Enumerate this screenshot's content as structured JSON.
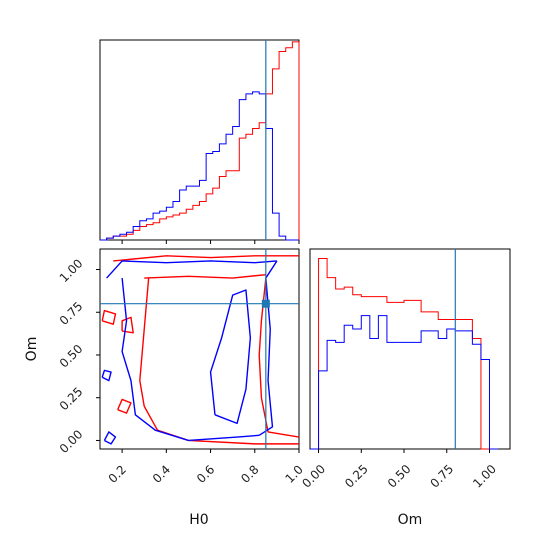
{
  "chart_data": {
    "type": "corner",
    "params": [
      "H0",
      "Om"
    ],
    "truths": {
      "H0": 0.85,
      "Om": 0.8
    },
    "colors": {
      "series_a": "#ff0000",
      "series_b": "#0000ff",
      "truth": "#1f77b4"
    },
    "axes": {
      "H0": {
        "label": "H0",
        "range": [
          0.1,
          1.0
        ],
        "ticks": [
          "0.2",
          "0.4",
          "0.6",
          "0.8",
          "1.0"
        ],
        "tick_values": [
          0.2,
          0.4,
          0.6,
          0.8,
          1.0
        ]
      },
      "Om": {
        "label": "Om",
        "range": [
          -0.05,
          1.12
        ],
        "ticks": [
          "0.00",
          "0.25",
          "0.50",
          "0.75",
          "1.00"
        ],
        "tick_values": [
          0.0,
          0.25,
          0.5,
          0.75,
          1.0
        ]
      },
      "Om_hist": {
        "range": [
          -0.05,
          1.12
        ],
        "ticks": [
          "0.00",
          "0.25",
          "0.50",
          "0.75",
          "1.00"
        ],
        "tick_values": [
          0.0,
          0.25,
          0.5,
          0.75,
          1.0
        ]
      }
    },
    "hist_H0": {
      "edges": [
        0.1,
        0.13,
        0.16,
        0.19,
        0.22,
        0.25,
        0.28,
        0.31,
        0.34,
        0.37,
        0.4,
        0.43,
        0.46,
        0.49,
        0.52,
        0.55,
        0.58,
        0.61,
        0.64,
        0.67,
        0.7,
        0.73,
        0.76,
        0.79,
        0.82,
        0.85,
        0.88,
        0.91,
        0.94,
        0.97,
        1.0
      ],
      "series": [
        {
          "color": "red",
          "values": [
            0,
            1,
            2,
            2,
            3,
            5,
            7,
            8,
            9,
            11,
            12,
            13,
            14,
            16,
            18,
            20,
            24,
            27,
            33,
            36,
            36,
            53,
            55,
            58,
            61,
            76,
            89,
            98,
            100,
            103
          ]
        },
        {
          "color": "blue",
          "values": [
            0,
            1,
            2,
            3,
            4,
            7,
            10,
            11,
            14,
            15,
            17,
            20,
            26,
            28,
            28,
            31,
            45,
            46,
            50,
            55,
            59,
            73,
            76,
            77,
            76,
            58,
            14,
            2,
            0,
            0
          ]
        }
      ],
      "ymax": 104
    },
    "hist_Om": {
      "edges": [
        -0.05,
        0.0,
        0.05,
        0.1,
        0.15,
        0.2,
        0.25,
        0.3,
        0.35,
        0.4,
        0.45,
        0.5,
        0.55,
        0.6,
        0.65,
        0.7,
        0.75,
        0.8,
        0.85,
        0.9,
        0.95,
        1.0,
        1.05
      ],
      "series": [
        {
          "color": "red",
          "values": [
            0,
            100,
            90,
            84,
            85,
            81,
            80,
            80,
            80,
            77,
            77,
            78,
            78,
            72,
            72,
            68,
            68,
            68,
            68,
            58,
            0,
            0
          ]
        },
        {
          "color": "blue",
          "values": [
            0,
            41,
            57,
            56,
            65,
            63,
            70,
            58,
            70,
            56,
            56,
            56,
            56,
            62,
            62,
            58,
            63,
            62,
            62,
            55,
            47,
            0
          ]
        }
      ],
      "ymax": 105
    },
    "contours": [
      {
        "color": "red",
        "points": [
          [
            0.16,
            1.05
          ],
          [
            0.4,
            1.08
          ],
          [
            0.6,
            1.07
          ],
          [
            0.8,
            1.08
          ],
          [
            1.0,
            1.08
          ]
        ]
      },
      {
        "color": "red",
        "points": [
          [
            0.3,
            0.95
          ],
          [
            0.5,
            0.96
          ],
          [
            0.7,
            0.95
          ],
          [
            0.85,
            0.97
          ]
        ]
      },
      {
        "color": "red",
        "points": [
          [
            0.32,
            0.95
          ],
          [
            0.3,
            0.65
          ],
          [
            0.28,
            0.35
          ],
          [
            0.3,
            0.2
          ],
          [
            0.36,
            0.06
          ],
          [
            0.5,
            0.0
          ],
          [
            0.8,
            -0.02
          ],
          [
            1.0,
            -0.02
          ]
        ]
      },
      {
        "color": "red",
        "points": [
          [
            0.85,
            0.95
          ],
          [
            0.83,
            0.7
          ],
          [
            0.82,
            0.5
          ],
          [
            0.83,
            0.25
          ],
          [
            0.86,
            0.05
          ],
          [
            1.0,
            0.02
          ]
        ]
      },
      {
        "color": "red",
        "points": [
          [
            0.11,
            0.7
          ],
          [
            0.16,
            0.68
          ],
          [
            0.17,
            0.74
          ],
          [
            0.12,
            0.76
          ],
          [
            0.11,
            0.7
          ]
        ]
      },
      {
        "color": "red",
        "points": [
          [
            0.2,
            0.64
          ],
          [
            0.25,
            0.63
          ],
          [
            0.24,
            0.72
          ],
          [
            0.2,
            0.7
          ],
          [
            0.2,
            0.64
          ]
        ]
      },
      {
        "color": "red",
        "points": [
          [
            0.18,
            0.18
          ],
          [
            0.22,
            0.16
          ],
          [
            0.24,
            0.22
          ],
          [
            0.2,
            0.24
          ],
          [
            0.18,
            0.18
          ]
        ]
      },
      {
        "color": "blue",
        "points": [
          [
            0.13,
            0.95
          ],
          [
            0.2,
            1.05
          ],
          [
            0.4,
            1.04
          ],
          [
            0.6,
            1.05
          ],
          [
            0.8,
            1.04
          ],
          [
            0.9,
            1.05
          ]
        ]
      },
      {
        "color": "blue",
        "points": [
          [
            0.2,
            0.95
          ],
          [
            0.22,
            0.7
          ],
          [
            0.2,
            0.52
          ],
          [
            0.24,
            0.35
          ],
          [
            0.26,
            0.15
          ],
          [
            0.35,
            0.06
          ],
          [
            0.5,
            0.0
          ],
          [
            0.72,
            0.02
          ],
          [
            0.82,
            0.03
          ]
        ]
      },
      {
        "color": "blue",
        "points": [
          [
            0.82,
            0.03
          ],
          [
            0.88,
            0.08
          ],
          [
            0.86,
            0.35
          ],
          [
            0.87,
            0.65
          ],
          [
            0.85,
            0.95
          ],
          [
            0.9,
            1.05
          ]
        ]
      },
      {
        "color": "blue",
        "points": [
          [
            0.62,
            0.15
          ],
          [
            0.6,
            0.4
          ],
          [
            0.65,
            0.6
          ],
          [
            0.7,
            0.85
          ],
          [
            0.76,
            0.88
          ],
          [
            0.78,
            0.6
          ],
          [
            0.76,
            0.3
          ],
          [
            0.72,
            0.1
          ],
          [
            0.62,
            0.15
          ]
        ]
      },
      {
        "color": "blue",
        "points": [
          [
            0.12,
            0.0
          ],
          [
            0.15,
            -0.02
          ],
          [
            0.17,
            0.02
          ],
          [
            0.14,
            0.05
          ],
          [
            0.12,
            0.0
          ]
        ]
      },
      {
        "color": "blue",
        "points": [
          [
            0.11,
            0.37
          ],
          [
            0.14,
            0.35
          ],
          [
            0.15,
            0.4
          ],
          [
            0.12,
            0.41
          ],
          [
            0.11,
            0.37
          ]
        ]
      }
    ]
  }
}
